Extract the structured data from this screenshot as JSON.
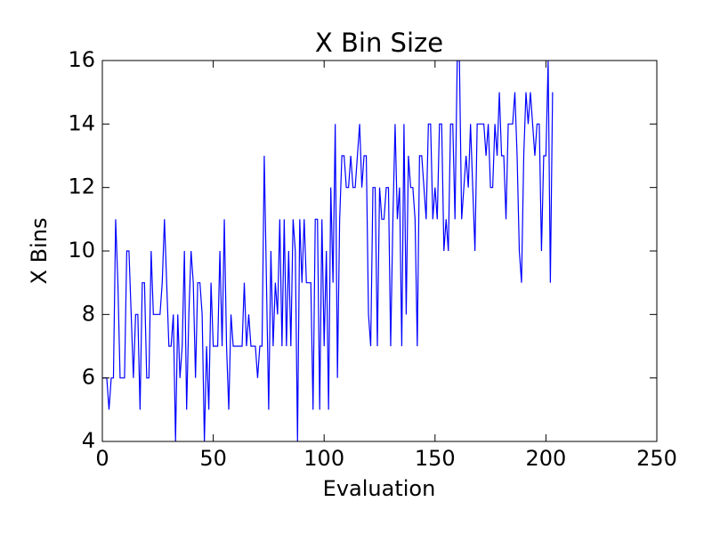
{
  "chart_data": {
    "type": "line",
    "title": "X Bin Size",
    "x_label": "Evaluation",
    "y_label": "X Bins",
    "color": "#0000ff",
    "x": [
      0,
      1,
      2,
      3,
      4,
      5,
      6,
      7,
      8,
      9,
      10,
      11,
      12,
      13,
      14,
      15,
      16,
      17,
      18,
      19,
      20,
      21,
      22,
      23,
      24,
      25,
      26,
      27,
      28,
      29,
      30,
      31,
      32,
      33,
      34,
      35,
      36,
      37,
      38,
      39,
      40,
      41,
      42,
      43,
      44,
      45,
      46,
      47,
      48,
      49,
      50,
      51,
      52,
      53,
      54,
      55,
      56,
      57,
      58,
      59,
      60,
      61,
      62,
      63,
      64,
      65,
      66,
      67,
      68,
      69,
      70,
      71,
      72,
      73,
      74,
      75,
      76,
      77,
      78,
      79,
      80,
      81,
      82,
      83,
      84,
      85,
      86,
      87,
      88,
      89,
      90,
      91,
      92,
      93,
      94,
      95,
      96,
      97,
      98,
      99,
      100,
      101,
      102,
      103,
      104,
      105,
      106,
      107,
      108,
      109,
      110,
      111,
      112,
      113,
      114,
      115,
      116,
      117,
      118,
      119,
      120,
      121,
      122,
      123,
      124,
      125,
      126,
      127,
      128,
      129,
      130,
      131,
      132,
      133,
      134,
      135,
      136,
      137,
      138,
      139,
      140,
      141,
      142,
      143,
      144,
      145,
      146,
      147,
      148,
      149,
      150,
      151,
      152,
      153,
      154,
      155,
      156,
      157,
      158,
      159,
      160,
      161,
      162,
      163,
      164,
      165,
      166,
      167,
      168,
      169,
      170,
      171,
      172,
      173,
      174,
      175,
      176,
      177,
      178,
      179,
      180,
      181,
      182,
      183,
      184,
      185,
      186,
      187,
      188,
      189,
      190,
      191,
      192,
      193,
      194,
      195,
      196,
      197,
      198,
      199,
      200,
      201,
      202,
      203
    ],
    "values": [
      6,
      6,
      6,
      5,
      6,
      6,
      11,
      9,
      6,
      6,
      6,
      10,
      10,
      8,
      6,
      8,
      8,
      5,
      9,
      9,
      6,
      6,
      10,
      8,
      8,
      8,
      8,
      9,
      11,
      9,
      7,
      7,
      8,
      4,
      8,
      6,
      7,
      10,
      5,
      8,
      10,
      9,
      6,
      9,
      9,
      8,
      4,
      7,
      5,
      9,
      7,
      7,
      7,
      10,
      7,
      11,
      7,
      5,
      8,
      7,
      7,
      7,
      7,
      7,
      9,
      7,
      8,
      7,
      7,
      7,
      6,
      7,
      7,
      13,
      9,
      5,
      10,
      7,
      9,
      8,
      11,
      7,
      11,
      7,
      10,
      7,
      11,
      10,
      4,
      11,
      9,
      11,
      9,
      9,
      9,
      5,
      11,
      11,
      5,
      11,
      7,
      10,
      5,
      12,
      9,
      14,
      6,
      11,
      13,
      13,
      12,
      12,
      13,
      12,
      12,
      13,
      14,
      12,
      13,
      13,
      8,
      7,
      12,
      12,
      7,
      12,
      11,
      11,
      12,
      12,
      7,
      11,
      14,
      11,
      12,
      7,
      14,
      8,
      13,
      12,
      12,
      11,
      7,
      13,
      13,
      12,
      11,
      14,
      14,
      11,
      12,
      11,
      14,
      14,
      10,
      11,
      10,
      14,
      14,
      11,
      16,
      16,
      11,
      12,
      13,
      12,
      14,
      12,
      10,
      14,
      14,
      14,
      14,
      13,
      14,
      12,
      12,
      14,
      13,
      15,
      13,
      13,
      11,
      14,
      14,
      14,
      15,
      13,
      10,
      9,
      13,
      15,
      14,
      15,
      14,
      13,
      14,
      14,
      10,
      13,
      13,
      16,
      9,
      15
    ],
    "xlim": [
      0,
      250
    ],
    "xticks": [
      0,
      50,
      100,
      150,
      200,
      250
    ],
    "ylim": [
      4,
      16
    ],
    "yticks": [
      4,
      6,
      8,
      10,
      12,
      14,
      16
    ]
  }
}
